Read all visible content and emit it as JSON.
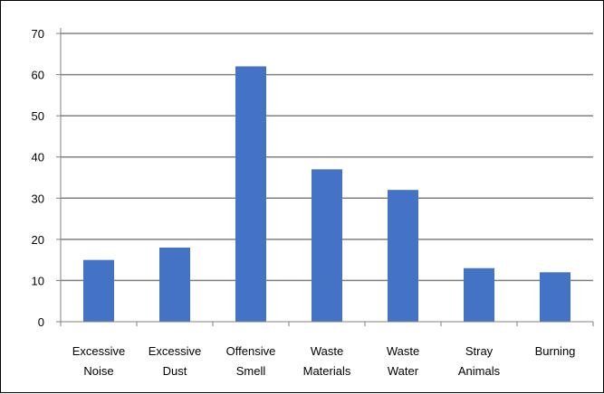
{
  "chart_data": {
    "type": "bar",
    "title": "",
    "xlabel": "",
    "ylabel": "",
    "categories": [
      [
        "Excessive",
        "Noise"
      ],
      [
        "Excessive",
        "Dust"
      ],
      [
        "Offensive",
        "Smell"
      ],
      [
        "Waste",
        "Materials"
      ],
      [
        "Waste",
        "Water"
      ],
      [
        "Stray",
        "Animals"
      ],
      [
        "Burning"
      ]
    ],
    "values": [
      15,
      18,
      62,
      37,
      32,
      13,
      12
    ],
    "ylim": [
      0,
      70
    ],
    "yticks": [
      0,
      10,
      20,
      30,
      40,
      50,
      60,
      70
    ],
    "grid": true,
    "legend": "none",
    "bar_color": "#4472C4",
    "grid_color": "#808080"
  }
}
